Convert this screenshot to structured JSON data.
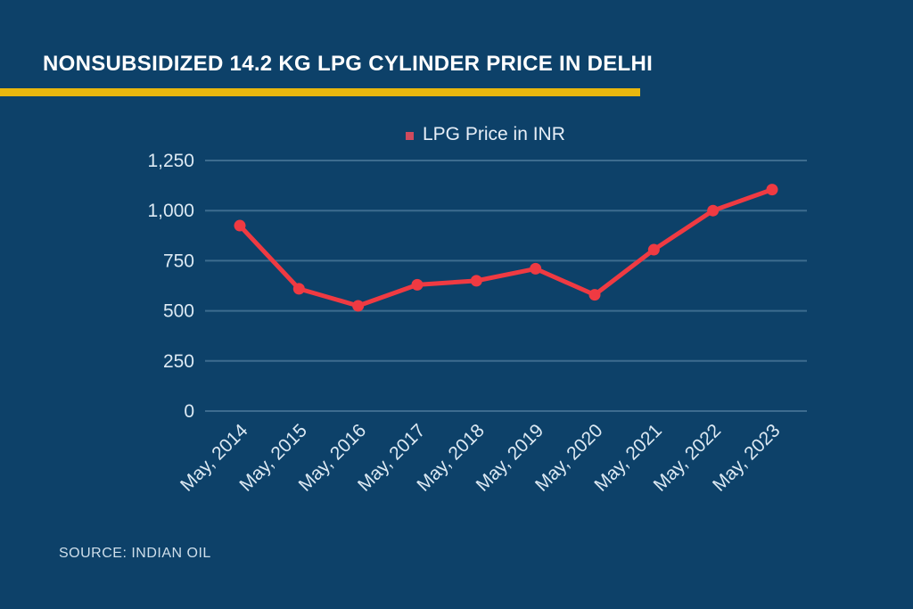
{
  "page": {
    "background_color": "#0d4169",
    "accent_yellow": "#e9b70e",
    "accent_red": "#ef3a42",
    "text_color": "#dce9f3"
  },
  "header": {
    "title": "NONSUBSIDIZED 14.2 KG LPG CYLINDER PRICE IN DELHI"
  },
  "legend": {
    "label": "LPG Price in INR",
    "marker_color": "#cf4a5d"
  },
  "source": {
    "text": "SOURCE: INDIAN OIL"
  },
  "chart_data": {
    "type": "line",
    "title": "NONSUBSIDIZED 14.2 KG LPG CYLINDER PRICE IN DELHI",
    "categories": [
      "May, 2014",
      "May, 2015",
      "May, 2016",
      "May, 2017",
      "May, 2018",
      "May, 2019",
      "May, 2020",
      "May, 2021",
      "May, 2022",
      "May, 2023"
    ],
    "series": [
      {
        "name": "LPG Price in INR",
        "color": "#ef3a42",
        "marker": "circle",
        "values": [
          925,
          610,
          525,
          630,
          650,
          710,
          580,
          805,
          1000,
          1105
        ]
      }
    ],
    "xlabel": "",
    "ylabel": "",
    "ylim": [
      0,
      1250
    ],
    "yticks": [
      {
        "value": 0,
        "label": "0"
      },
      {
        "value": 250,
        "label": "250"
      },
      {
        "value": 500,
        "label": "500"
      },
      {
        "value": 750,
        "label": "750"
      },
      {
        "value": 1000,
        "label": "1,000"
      },
      {
        "value": 1250,
        "label": "1,250"
      }
    ],
    "grid": "horizontal-only",
    "gridline_color": "rgba(165,198,224,0.32)",
    "legend_position": "top-center",
    "x_tick_rotation_deg": -45
  }
}
